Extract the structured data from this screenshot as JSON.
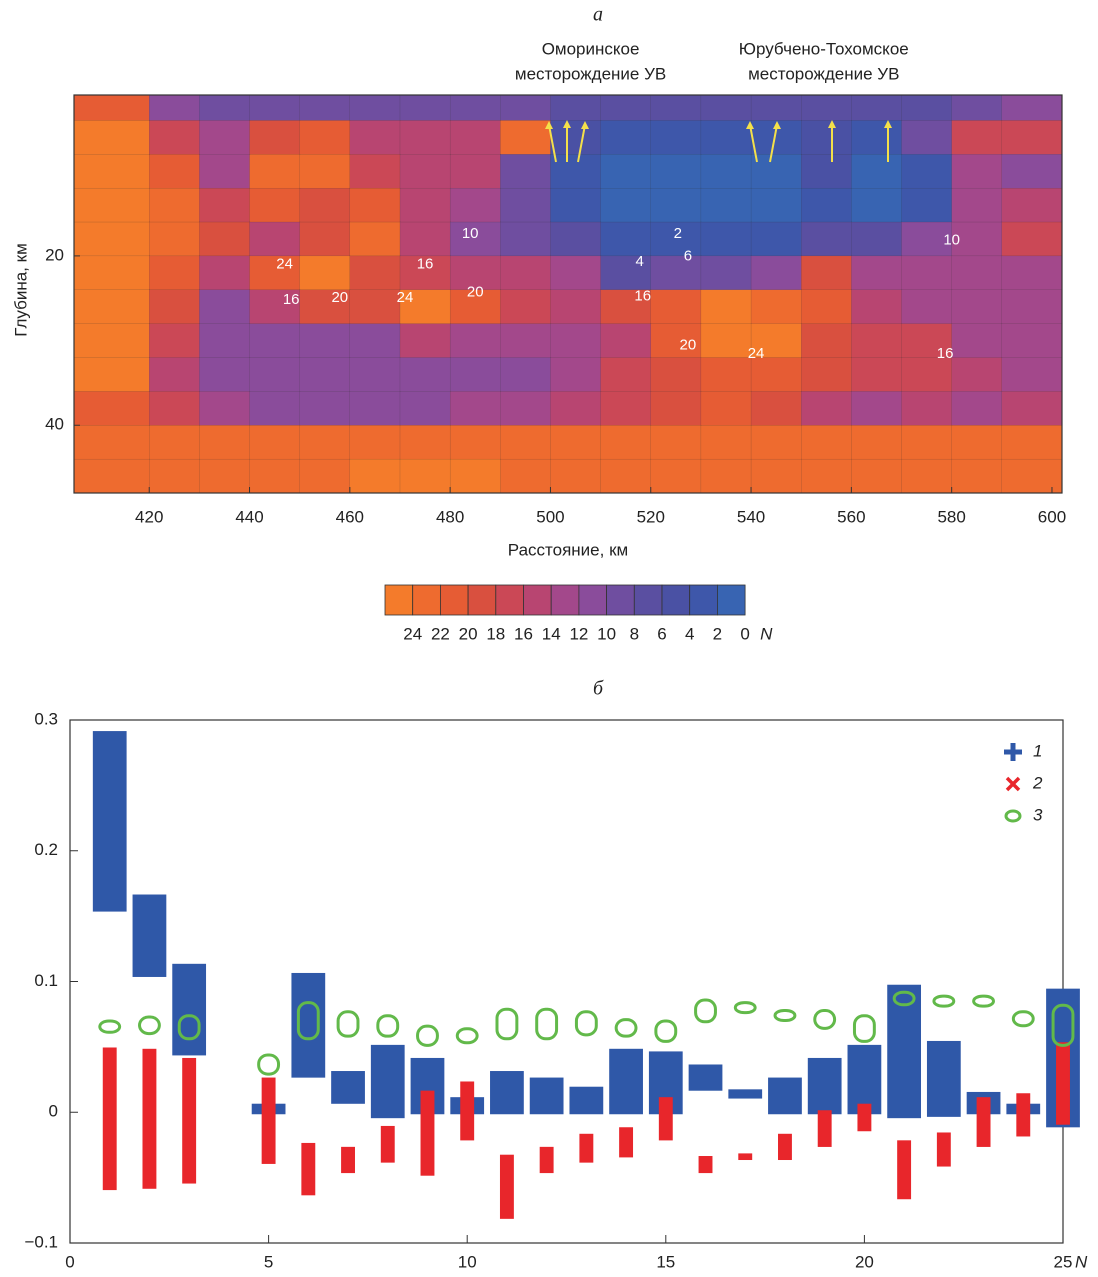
{
  "chart_data": [
    {
      "type": "contour",
      "title": "а",
      "xlabel": "Расстояние, км",
      "ylabel": "Глубина, км",
      "xlim": [
        405,
        602
      ],
      "ylim": [
        48,
        1
      ],
      "xticks": [
        420,
        440,
        460,
        480,
        500,
        520,
        540,
        560,
        580,
        600
      ],
      "yticks": [
        20,
        40
      ],
      "x": [
        415,
        425,
        435,
        445,
        455,
        465,
        475,
        485,
        495,
        505,
        515,
        525,
        535,
        545,
        555,
        565,
        575,
        585,
        595
      ],
      "y": [
        2,
        6,
        10,
        14,
        18,
        22,
        26,
        30,
        34,
        38,
        42,
        46
      ],
      "z": [
        [
          20,
          10,
          8,
          8,
          8,
          8,
          8,
          8,
          8,
          6,
          6,
          6,
          6,
          6,
          6,
          6,
          6,
          8,
          10
        ],
        [
          24,
          16,
          12,
          18,
          20,
          14,
          14,
          14,
          22,
          4,
          2,
          2,
          2,
          2,
          4,
          2,
          8,
          16,
          16
        ],
        [
          24,
          20,
          12,
          22,
          22,
          16,
          14,
          14,
          8,
          2,
          0,
          0,
          0,
          0,
          4,
          0,
          2,
          12,
          10
        ],
        [
          24,
          22,
          16,
          20,
          18,
          20,
          14,
          12,
          8,
          2,
          0,
          0,
          0,
          0,
          2,
          0,
          2,
          12,
          14
        ],
        [
          24,
          22,
          18,
          14,
          18,
          22,
          14,
          10,
          8,
          6,
          2,
          2,
          2,
          2,
          6,
          6,
          10,
          12,
          16
        ],
        [
          24,
          20,
          14,
          20,
          24,
          18,
          16,
          14,
          14,
          12,
          6,
          8,
          8,
          10,
          18,
          12,
          12,
          12,
          12
        ],
        [
          24,
          18,
          10,
          14,
          18,
          18,
          24,
          20,
          16,
          14,
          18,
          20,
          24,
          22,
          20,
          14,
          12,
          12,
          12
        ],
        [
          24,
          16,
          10,
          10,
          10,
          10,
          14,
          12,
          12,
          12,
          14,
          20,
          24,
          24,
          18,
          16,
          16,
          12,
          12
        ],
        [
          24,
          14,
          10,
          10,
          10,
          10,
          10,
          10,
          10,
          12,
          16,
          18,
          20,
          20,
          18,
          16,
          16,
          14,
          12
        ],
        [
          20,
          16,
          12,
          10,
          10,
          10,
          10,
          12,
          12,
          14,
          16,
          18,
          20,
          18,
          14,
          12,
          14,
          12,
          14
        ],
        [
          22,
          22,
          22,
          22,
          22,
          22,
          22,
          22,
          22,
          22,
          22,
          22,
          22,
          22,
          22,
          22,
          22,
          22,
          22
        ],
        [
          22,
          22,
          22,
          22,
          22,
          24,
          24,
          24,
          22,
          22,
          22,
          22,
          22,
          22,
          22,
          22,
          22,
          22,
          22
        ]
      ],
      "contour_labels": [
        {
          "value": 24,
          "x": 447,
          "y": 21
        },
        {
          "value": 16,
          "x": 448.3,
          "y": 25.2
        },
        {
          "value": 20,
          "x": 458,
          "y": 25
        },
        {
          "value": 24,
          "x": 471,
          "y": 25
        },
        {
          "value": 20,
          "x": 485,
          "y": 24.3
        },
        {
          "value": 16,
          "x": 475,
          "y": 21
        },
        {
          "value": 10,
          "x": 484,
          "y": 17.4
        },
        {
          "value": 2,
          "x": 525.4,
          "y": 17.4
        },
        {
          "value": 4,
          "x": 517.8,
          "y": 20.7
        },
        {
          "value": 6,
          "x": 527.4,
          "y": 20.1
        },
        {
          "value": 16,
          "x": 518.4,
          "y": 24.8
        },
        {
          "value": 20,
          "x": 527.4,
          "y": 30.6
        },
        {
          "value": 24,
          "x": 541,
          "y": 31.6
        },
        {
          "value": 10,
          "x": 580,
          "y": 18.2
        },
        {
          "value": 16,
          "x": 578.7,
          "y": 31.6
        }
      ],
      "annotations": [
        {
          "lines": [
            "Оморинское",
            "месторождение УВ"
          ],
          "x": 508
        },
        {
          "lines": [
            "Юрубчено-Тохомское",
            "месторождение УВ"
          ],
          "x": 554.5
        }
      ],
      "colorbar": {
        "levels": [
          24,
          22,
          20,
          18,
          16,
          14,
          12,
          10,
          8,
          6,
          4,
          2,
          0
        ],
        "label": "N",
        "colors": [
          "#f47b2b",
          "#ee6b2f",
          "#e65c34",
          "#d9503f",
          "#cb4856",
          "#b84571",
          "#a3488b",
          "#8a4c9b",
          "#6f4ea0",
          "#5a4fa1",
          "#4a51a4",
          "#3e57aa",
          "#3864b2"
        ]
      }
    },
    {
      "type": "range",
      "title": "б",
      "xlabel": "N",
      "xlim": [
        0,
        25
      ],
      "ylim": [
        -0.1,
        0.3
      ],
      "xticks": [
        0,
        5,
        10,
        15,
        20,
        25
      ],
      "yticks": [
        {
          "value": -0.1,
          "label": "−0.1"
        },
        0,
        0.1,
        0.2,
        0.3
      ],
      "legend": "top-right",
      "x": [
        1,
        2,
        3,
        4,
        5,
        6,
        7,
        8,
        9,
        10,
        11,
        12,
        13,
        14,
        15,
        16,
        17,
        18,
        19,
        20,
        21,
        22,
        23,
        24,
        25
      ],
      "series": [
        {
          "name": "1",
          "color": "#2f58a8",
          "marker": "plus",
          "values": [
            [
              0.155,
              0.29
            ],
            [
              0.105,
              0.165
            ],
            [
              0.045,
              0.112
            ],
            null,
            [
              0,
              0.005
            ],
            [
              0.028,
              0.105
            ],
            [
              0.008,
              0.03
            ],
            [
              -0.003,
              0.05
            ],
            [
              0,
              0.04
            ],
            [
              0,
              0.01
            ],
            [
              0,
              0.03
            ],
            [
              0,
              0.025
            ],
            [
              0,
              0.018
            ],
            [
              0,
              0.047
            ],
            [
              0,
              0.045
            ],
            [
              0.018,
              0.035
            ],
            [
              0.012,
              0.016
            ],
            [
              0,
              0.025
            ],
            [
              0,
              0.04
            ],
            [
              0,
              0.05
            ],
            [
              -0.003,
              0.096
            ],
            [
              -0.002,
              0.053
            ],
            [
              0,
              0.014
            ],
            [
              0,
              0.005
            ],
            [
              -0.01,
              0.093
            ]
          ]
        },
        {
          "name": "2",
          "color": "#e8262b",
          "marker": "cross",
          "values": [
            [
              -0.058,
              0.048
            ],
            [
              -0.057,
              0.047
            ],
            [
              -0.053,
              0.04
            ],
            null,
            [
              -0.038,
              0.025
            ],
            [
              -0.062,
              -0.025
            ],
            [
              -0.045,
              -0.028
            ],
            [
              -0.037,
              -0.012
            ],
            [
              -0.047,
              0.015
            ],
            [
              -0.02,
              0.022
            ],
            [
              -0.08,
              -0.034
            ],
            [
              -0.045,
              -0.028
            ],
            [
              -0.037,
              -0.018
            ],
            [
              -0.033,
              -0.013
            ],
            [
              -0.02,
              0.01
            ],
            [
              -0.045,
              -0.035
            ],
            [
              -0.035,
              -0.033
            ],
            [
              -0.035,
              -0.018
            ],
            [
              -0.025,
              0
            ],
            [
              -0.013,
              0.005
            ],
            [
              -0.065,
              -0.023
            ],
            [
              -0.04,
              -0.017
            ],
            [
              -0.025,
              0.01
            ],
            [
              -0.017,
              0.013
            ],
            [
              -0.008,
              0.052
            ]
          ]
        },
        {
          "name": "3",
          "color": "#62b94a",
          "marker": "circle",
          "values": [
            [
              0.065,
              0.066
            ],
            [
              0.064,
              0.069
            ],
            [
              0.06,
              0.07
            ],
            null,
            [
              0.033,
              0.04
            ],
            [
              0.06,
              0.08
            ],
            [
              0.062,
              0.073
            ],
            [
              0.062,
              0.07
            ],
            [
              0.055,
              0.062
            ],
            [
              0.057,
              0.06
            ],
            [
              0.06,
              0.075
            ],
            [
              0.06,
              0.075
            ],
            [
              0.063,
              0.073
            ],
            [
              0.062,
              0.067
            ],
            [
              0.058,
              0.066
            ],
            [
              0.073,
              0.082
            ],
            [
              0.08,
              0.08
            ],
            [
              0.074,
              0.074
            ],
            [
              0.068,
              0.074
            ],
            [
              0.058,
              0.07
            ],
            [
              0.086,
              0.088
            ],
            [
              0.085,
              0.085
            ],
            [
              0.085,
              0.085
            ],
            [
              0.07,
              0.073
            ],
            [
              0.055,
              0.078
            ]
          ]
        }
      ]
    }
  ]
}
